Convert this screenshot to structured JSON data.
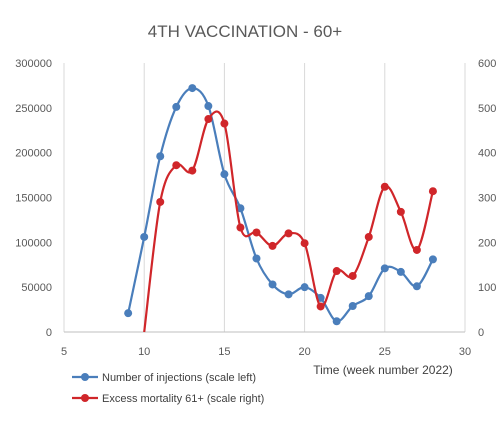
{
  "chart_data": {
    "type": "line",
    "title": "4TH VACCINATION - 60+",
    "xlabel": "Time (week number 2022)",
    "xlim": [
      5,
      30
    ],
    "x_ticks": [
      5,
      10,
      15,
      20,
      25,
      30
    ],
    "ylim_left": [
      0,
      300000
    ],
    "y_ticks_left": [
      0,
      50000,
      100000,
      150000,
      200000,
      250000,
      300000
    ],
    "ylim_right": [
      0,
      600
    ],
    "y_ticks_right": [
      0,
      100,
      200,
      300,
      400,
      500,
      600
    ],
    "grid": "vertical",
    "legend_position": "bottom-left",
    "series": [
      {
        "name": "Number of injections (scale left)",
        "axis": "left",
        "color": "#4a7ebb",
        "x": [
          9,
          10,
          11,
          12,
          13,
          14,
          15,
          16,
          17,
          18,
          19,
          20,
          21,
          22,
          23,
          24,
          25,
          26,
          27,
          28
        ],
        "values": [
          21000,
          106000,
          196000,
          251000,
          272000,
          252000,
          176000,
          138000,
          82000,
          53000,
          42000,
          50000,
          38000,
          12000,
          29000,
          40000,
          71000,
          67000,
          51000,
          81000
        ]
      },
      {
        "name": "Excess mortality 61+ (scale right)",
        "axis": "right",
        "color": "#d0262a",
        "x": [
          10,
          11,
          12,
          13,
          14,
          15,
          16,
          17,
          18,
          19,
          20,
          21,
          22,
          23,
          24,
          25,
          26,
          27,
          28
        ],
        "values": [
          0,
          290,
          372,
          360,
          475,
          465,
          233,
          222,
          192,
          220,
          198,
          57,
          136,
          125,
          212,
          324,
          268,
          183,
          314
        ]
      }
    ]
  }
}
